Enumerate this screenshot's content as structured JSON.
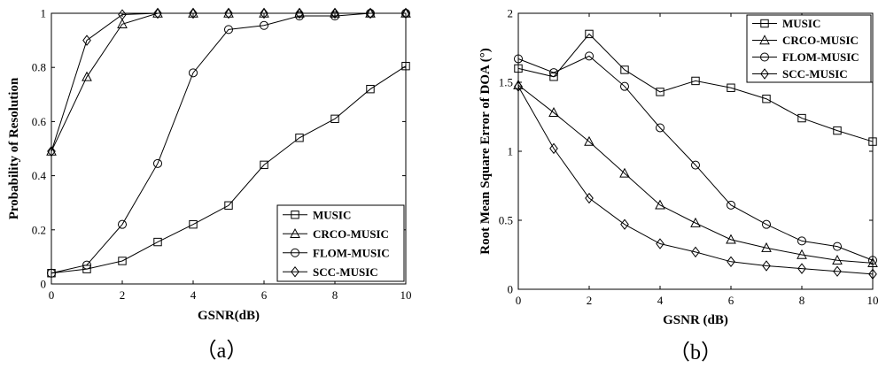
{
  "chart_data": [
    {
      "type": "line",
      "panel_label": "（a）",
      "xlabel": "GSNR(dB)",
      "ylabel": "Probability of Resolution",
      "xlim": [
        0,
        10
      ],
      "ylim": [
        0,
        1
      ],
      "xticks": [
        0,
        2,
        4,
        6,
        8,
        10
      ],
      "yticks": [
        0,
        0.2,
        0.4,
        0.6,
        0.8,
        1
      ],
      "ytick_labels": [
        "0",
        "0.2",
        "0.4",
        "0.6",
        "0.8",
        "1"
      ],
      "grid": false,
      "legend_position": "bottom-right",
      "x": [
        0,
        1,
        2,
        3,
        4,
        5,
        6,
        7,
        8,
        9,
        10
      ],
      "series": [
        {
          "name": "MUSIC",
          "marker": "square",
          "values": [
            0.04,
            0.055,
            0.085,
            0.155,
            0.22,
            0.29,
            0.44,
            0.54,
            0.61,
            0.72,
            0.805
          ]
        },
        {
          "name": "CRCO-MUSIC",
          "marker": "triangle",
          "values": [
            0.49,
            0.765,
            0.96,
            1.0,
            1.0,
            1.0,
            1.0,
            1.0,
            1.0,
            1.0,
            1.0
          ]
        },
        {
          "name": "FLOM-MUSIC",
          "marker": "circle",
          "values": [
            0.04,
            0.07,
            0.22,
            0.445,
            0.78,
            0.94,
            0.955,
            0.99,
            0.99,
            1.0,
            1.0
          ]
        },
        {
          "name": "SCC-MUSIC",
          "marker": "diamond",
          "values": [
            0.49,
            0.9,
            0.995,
            1.0,
            1.0,
            1.0,
            1.0,
            1.0,
            1.0,
            1.0,
            1.0
          ]
        }
      ]
    },
    {
      "type": "line",
      "panel_label": "（b）",
      "xlabel": "GSNR (dB)",
      "ylabel": "Root Mean Square Error of DOA (°)",
      "xlim": [
        0,
        10
      ],
      "ylim": [
        0,
        2
      ],
      "xticks": [
        0,
        2,
        4,
        6,
        8,
        10
      ],
      "yticks": [
        0,
        0.5,
        1,
        1.5,
        2
      ],
      "ytick_labels": [
        "0",
        "0.5",
        "1",
        "1.5",
        "2"
      ],
      "grid": false,
      "legend_position": "top-right",
      "x": [
        0,
        1,
        2,
        3,
        4,
        5,
        6,
        7,
        8,
        9,
        10
      ],
      "series": [
        {
          "name": "MUSIC",
          "marker": "square",
          "values": [
            1.6,
            1.54,
            1.85,
            1.59,
            1.43,
            1.51,
            1.46,
            1.38,
            1.24,
            1.15,
            1.07
          ]
        },
        {
          "name": "CRCO-MUSIC",
          "marker": "triangle",
          "values": [
            1.48,
            1.28,
            1.07,
            0.84,
            0.61,
            0.48,
            0.36,
            0.3,
            0.25,
            0.21,
            0.19
          ]
        },
        {
          "name": "FLOM-MUSIC",
          "marker": "circle",
          "values": [
            1.67,
            1.57,
            1.69,
            1.47,
            1.17,
            0.9,
            0.61,
            0.47,
            0.35,
            0.31,
            0.21
          ]
        },
        {
          "name": "SCC-MUSIC",
          "marker": "diamond",
          "values": [
            1.47,
            1.02,
            0.66,
            0.47,
            0.33,
            0.27,
            0.2,
            0.17,
            0.15,
            0.13,
            0.11
          ]
        }
      ]
    }
  ]
}
